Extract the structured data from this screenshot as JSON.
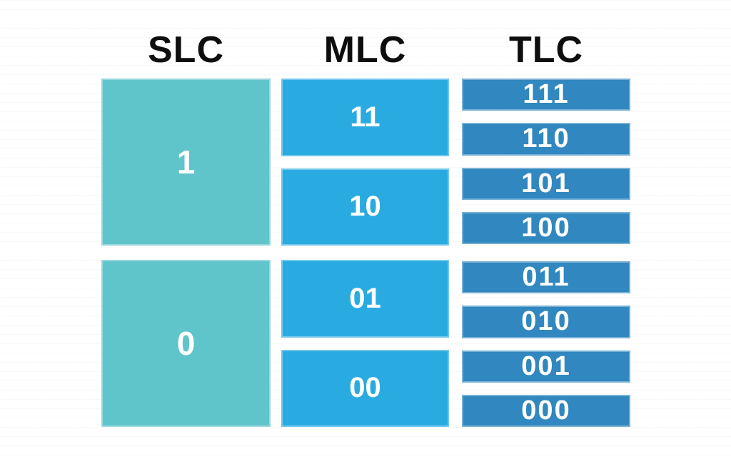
{
  "diagram": {
    "description": "Comparison of NAND flash memory cell types: bit states per cell",
    "text_color": "#0e0e0e",
    "cell_label_color": "#ffffff",
    "background_color": "#ffffff",
    "columns": [
      {
        "header": "SLC",
        "color": "#60c4cb",
        "groups": [
          [
            "1"
          ],
          [
            "0"
          ]
        ]
      },
      {
        "header": "MLC",
        "color": "#29abe2",
        "groups": [
          [
            "11",
            "10"
          ],
          [
            "01",
            "00"
          ]
        ]
      },
      {
        "header": "TLC",
        "color": "#3187bf",
        "groups": [
          [
            "111",
            "110",
            "101",
            "100"
          ],
          [
            "011",
            "010",
            "001",
            "000"
          ]
        ]
      }
    ]
  }
}
